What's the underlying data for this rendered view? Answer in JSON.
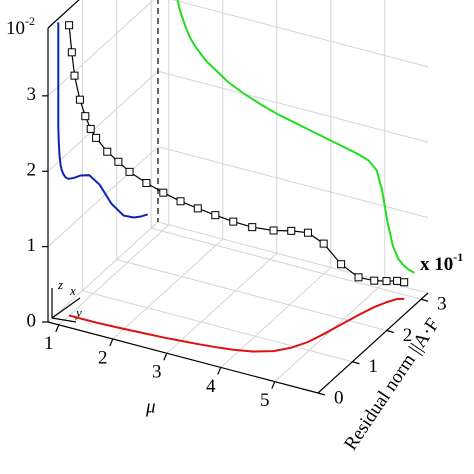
{
  "chart_data": {
    "type": "line3d",
    "xlabel": "μ",
    "ylabel": "Residual norm ||A·F",
    "zmultiplier": {
      "base": "10",
      "exp": "-2"
    },
    "ymultiplier": {
      "base": "x 10",
      "exp": "-1"
    },
    "triad": {
      "x": "x",
      "y": "y",
      "z": "z"
    },
    "xlim": [
      0.8,
      5.8
    ],
    "ylim": [
      0,
      3.2
    ],
    "zlim": [
      0,
      3.9
    ],
    "xticks": [
      1,
      2,
      3,
      4,
      5
    ],
    "yticks": [
      0,
      1,
      2,
      3
    ],
    "zticks": [
      0,
      1,
      2,
      3
    ],
    "grid": true,
    "series": [
      {
        "color": "#000000",
        "x": [
          1.0,
          1.05,
          1.1,
          1.2,
          1.3,
          1.4,
          1.5,
          1.7,
          1.9,
          2.1,
          2.4,
          2.7,
          3.0,
          3.3,
          3.6,
          3.9,
          4.2,
          4.5,
          4.7,
          4.85,
          4.95,
          5.05,
          5.15,
          5.25,
          5.35,
          5.45,
          5.55
        ],
        "y": [
          0.3,
          0.3,
          0.3,
          0.3,
          0.3,
          0.3,
          0.3,
          0.31,
          0.32,
          0.33,
          0.35,
          0.37,
          0.4,
          0.43,
          0.47,
          0.52,
          0.6,
          0.75,
          0.95,
          1.2,
          1.5,
          1.85,
          2.2,
          2.5,
          2.7,
          2.85,
          2.9
        ],
        "z": [
          3.85,
          3.5,
          3.2,
          2.9,
          2.7,
          2.55,
          2.45,
          2.3,
          2.2,
          2.1,
          2.0,
          1.92,
          1.85,
          1.8,
          1.75,
          1.7,
          1.65,
          1.6,
          1.55,
          1.45,
          1.2,
          0.8,
          0.5,
          0.35,
          0.28,
          0.24,
          0.22
        ]
      }
    ],
    "projections": [
      {
        "plane": "floor",
        "color": "#dd1111"
      },
      {
        "plane": "left",
        "color": "#1122bb"
      },
      {
        "plane": "back",
        "color": "#22dd22"
      }
    ]
  }
}
